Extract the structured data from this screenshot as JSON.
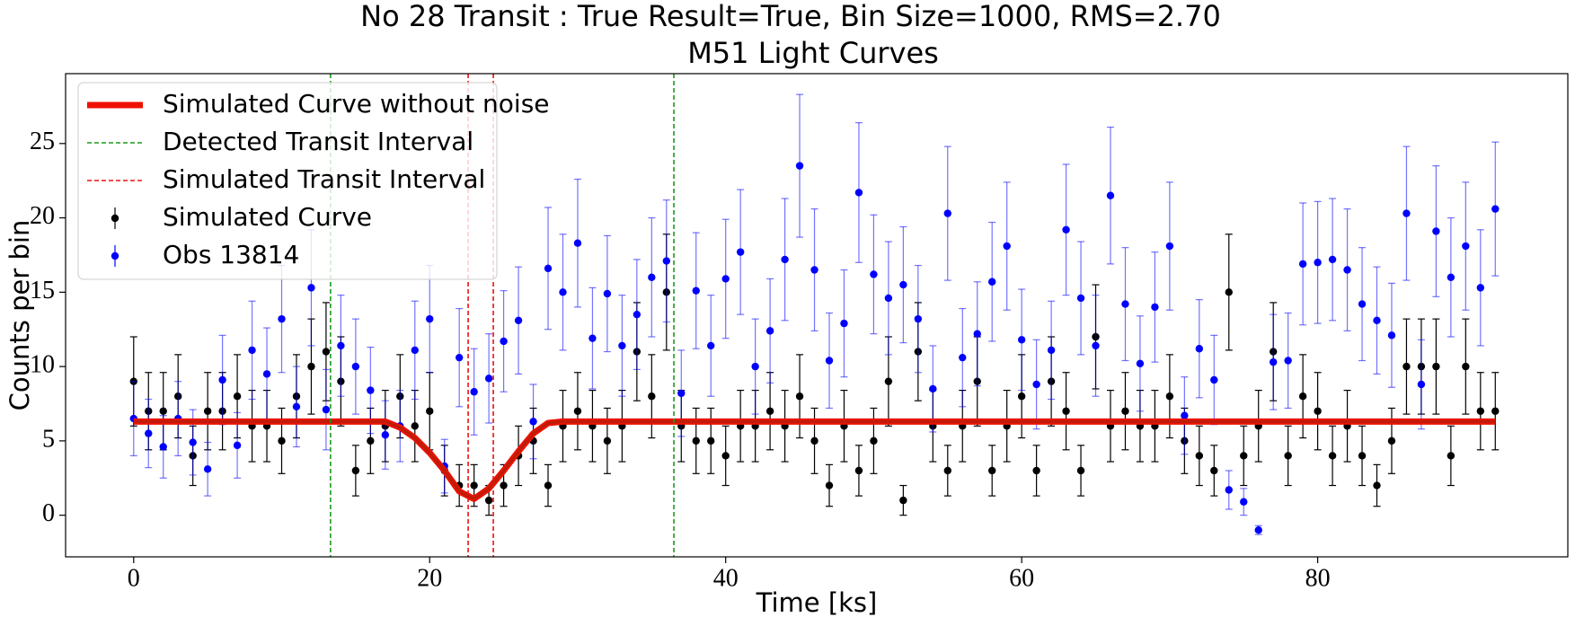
{
  "chart_data": {
    "type": "errorbar",
    "title": "No 28 Transit : True Result=True, Bin Size=1000, RMS=2.70",
    "subtitle": "M51 Light Curves",
    "x_label": "Time [ks]",
    "y_label": "Counts per bin",
    "xlim": [
      -4.6,
      96.9
    ],
    "ylim": [
      -2.8,
      29.7
    ],
    "xticks": [
      0,
      20,
      40,
      60,
      80
    ],
    "yticks": [
      0,
      5,
      10,
      15,
      20,
      25
    ],
    "grid": false,
    "legend": "upper left",
    "x": [
      0,
      1,
      2,
      3,
      4,
      5,
      6,
      7,
      8,
      9,
      10,
      11,
      12,
      13,
      14,
      15,
      16,
      17,
      18,
      19,
      20,
      21,
      22,
      23,
      24,
      25,
      26,
      27,
      28,
      29,
      30,
      31,
      32,
      33,
      34,
      35,
      36,
      37,
      38,
      39,
      40,
      41,
      42,
      43,
      44,
      45,
      46,
      47,
      48,
      49,
      50,
      51,
      52,
      53,
      54,
      55,
      56,
      57,
      58,
      59,
      60,
      61,
      62,
      63,
      64,
      65,
      66,
      67,
      68,
      69,
      70,
      71,
      72,
      73,
      74,
      75,
      76,
      77,
      78,
      79,
      80,
      81,
      82,
      83,
      84,
      85,
      86,
      87,
      88,
      89,
      90,
      91,
      92
    ],
    "series": [
      {
        "name": "Simulated Curve",
        "color": "#000000",
        "values": [
          9,
          7,
          7,
          8,
          4,
          7,
          7,
          8,
          6,
          6,
          5,
          8,
          10,
          11,
          9,
          3,
          5,
          6,
          8,
          6,
          7,
          3,
          2,
          2,
          1,
          2,
          4,
          5,
          2,
          6,
          7,
          6,
          5,
          6,
          11,
          8,
          15,
          6,
          5,
          5,
          4,
          6,
          6,
          7,
          6,
          8,
          5,
          2,
          6,
          3,
          5,
          9,
          1,
          11,
          6,
          3,
          6,
          9,
          3,
          6,
          8,
          3,
          9,
          7,
          3,
          12,
          6,
          7,
          6,
          6,
          8,
          5,
          4,
          3,
          15,
          4,
          6,
          11,
          4,
          8,
          7,
          4,
          6,
          4,
          2,
          5,
          10,
          10,
          10,
          4,
          10,
          7,
          7
        ],
        "errors": [
          3,
          2.6,
          2.6,
          2.8,
          2,
          2.6,
          2.6,
          2.8,
          2.4,
          2.4,
          2.2,
          2.8,
          3.2,
          3.3,
          3,
          1.7,
          2.2,
          2.4,
          2.8,
          2.4,
          2.6,
          1.7,
          1.4,
          1.4,
          1,
          1.4,
          2,
          2.2,
          1.4,
          2.4,
          2.6,
          2.4,
          2.2,
          2.4,
          3.3,
          2.8,
          3.9,
          2.4,
          2.2,
          2.2,
          2,
          2.4,
          2.4,
          2.6,
          2.4,
          2.8,
          2.2,
          1.4,
          2.4,
          1.7,
          2.2,
          3,
          1,
          3.3,
          2.4,
          1.7,
          2.4,
          3,
          1.7,
          2.4,
          2.8,
          1.7,
          3,
          2.6,
          1.7,
          3.5,
          2.4,
          2.6,
          2.4,
          2.4,
          2.8,
          2.2,
          2,
          1.7,
          3.9,
          2,
          2.4,
          3.3,
          2,
          2.8,
          2.6,
          2,
          2.4,
          2,
          1.4,
          2.2,
          3.2,
          3.2,
          3.2,
          2,
          3.2,
          2.6,
          2.6
        ]
      },
      {
        "name": "Obs 13814",
        "color": "#0000ff",
        "values": [
          6.5,
          5.5,
          4.6,
          6.5,
          4.9,
          3.1,
          9.1,
          4.7,
          11.1,
          9.5,
          13.2,
          7.3,
          15.3,
          7.1,
          11.4,
          10,
          8.4,
          5.4,
          6,
          11.1,
          13.2,
          3.3,
          10.6,
          8.3,
          9.2,
          11.7,
          13.1,
          6.3,
          16.6,
          15,
          18.3,
          11.9,
          14.9,
          11.4,
          13.5,
          16,
          17.1,
          8.2,
          15.1,
          11.4,
          15.9,
          17.7,
          10,
          12.4,
          17.2,
          23.5,
          16.5,
          10.4,
          12.9,
          21.7,
          16.2,
          14.6,
          15.5,
          13.2,
          8.5,
          20.3,
          10.6,
          12.2,
          15.7,
          18.1,
          11.8,
          8.8,
          11.1,
          19.2,
          14.6,
          11.4,
          21.5,
          14.2,
          10.2,
          14,
          18.1,
          6.7,
          11.2,
          9.1,
          1.7,
          0.9,
          -1,
          10.3,
          10.4,
          16.9,
          17,
          17.2,
          16.5,
          14.2,
          13.1,
          12.1,
          20.3,
          8.8,
          19.1,
          16,
          18.1,
          15.3,
          20.6
        ],
        "errors": [
          2.5,
          2.3,
          2.1,
          2.5,
          2.2,
          1.8,
          3,
          2.2,
          3.3,
          3.1,
          3.6,
          2.7,
          3.9,
          2.7,
          3.4,
          3.2,
          2.9,
          2.3,
          2.4,
          3.3,
          3.6,
          1.8,
          3.3,
          2.9,
          3,
          3.4,
          3.6,
          2.5,
          4.1,
          3.9,
          4.3,
          3.4,
          3.9,
          3.4,
          3.7,
          4,
          4.1,
          2.9,
          3.9,
          3.4,
          4,
          4.2,
          3.2,
          3.5,
          4.1,
          4.8,
          4.1,
          3.2,
          3.6,
          4.7,
          4,
          3.8,
          3.9,
          3.6,
          2.9,
          4.5,
          3.3,
          3.5,
          4,
          4.3,
          3.4,
          3,
          3.3,
          4.4,
          3.8,
          3.4,
          4.6,
          3.8,
          3.2,
          3.7,
          4.3,
          2.6,
          3.3,
          3,
          1.3,
          0.9,
          0.3,
          3.2,
          3.2,
          4.1,
          4.1,
          4.1,
          4.1,
          3.8,
          3.6,
          3.5,
          4.5,
          3,
          4.4,
          4,
          4.3,
          3.9,
          4.5
        ]
      },
      {
        "name": "Simulated Curve without noise",
        "color": "#ee1100",
        "values": [
          6.3,
          6.3,
          6.3,
          6.3,
          6.3,
          6.3,
          6.3,
          6.3,
          6.3,
          6.3,
          6.3,
          6.3,
          6.3,
          6.3,
          6.3,
          6.3,
          6.3,
          6.3,
          5.9,
          5.2,
          4.2,
          3,
          1.6,
          1.1,
          1.8,
          3,
          4.3,
          5.5,
          6.2,
          6.3,
          6.3,
          6.3,
          6.3,
          6.3,
          6.3,
          6.3,
          6.3,
          6.3,
          6.3,
          6.3,
          6.3,
          6.3,
          6.3,
          6.3,
          6.3,
          6.3,
          6.3,
          6.3,
          6.3,
          6.3,
          6.3,
          6.3,
          6.3,
          6.3,
          6.3,
          6.3,
          6.3,
          6.3,
          6.3,
          6.3,
          6.3,
          6.3,
          6.3,
          6.3,
          6.3,
          6.3,
          6.3,
          6.3,
          6.3,
          6.3,
          6.3,
          6.3,
          6.3,
          6.3,
          6.3,
          6.3,
          6.3,
          6.3,
          6.3,
          6.3,
          6.3,
          6.3,
          6.3,
          6.3,
          6.3,
          6.3,
          6.3,
          6.3,
          6.3,
          6.3,
          6.3,
          6.3,
          6.3
        ]
      }
    ],
    "vlines": [
      {
        "name": "Detected Transit Interval",
        "color": "#1a9a1a",
        "x": [
          13.3,
          36.5
        ]
      },
      {
        "name": "Simulated Transit Interval",
        "color": "#ee1111",
        "x": [
          22.6,
          24.3
        ]
      }
    ]
  }
}
